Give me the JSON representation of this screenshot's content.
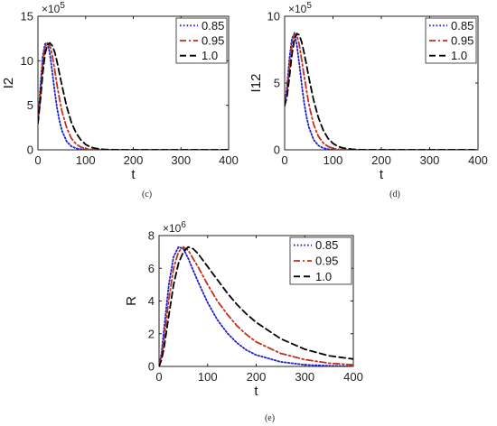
{
  "chart_data": [
    {
      "type": "line",
      "panel": "c",
      "caption": "(c)",
      "xlabel": "t",
      "ylabel": "I2",
      "xlim": [
        0,
        400
      ],
      "ylim": [
        0,
        15
      ],
      "xticks": [
        "0",
        "100",
        "200",
        "300",
        "400"
      ],
      "yticks": [
        "0",
        "5",
        "10",
        "15"
      ],
      "yscale_label": "×10^5",
      "yscale_base": "×10",
      "yscale_power": "5",
      "legend_position": "top-right",
      "x": [
        0,
        5,
        10,
        15,
        20,
        25,
        30,
        35,
        40,
        45,
        50,
        60,
        70,
        80,
        90,
        100,
        110,
        120,
        140,
        160,
        180,
        200,
        250,
        300,
        350,
        400
      ],
      "series": [
        {
          "name": "0.85",
          "color": "#1f1fcc",
          "dash": "dotted",
          "values": [
            3.0,
            7.0,
            10.5,
            11.9,
            12.0,
            10.8,
            8.8,
            6.6,
            4.7,
            3.3,
            2.2,
            0.95,
            0.4,
            0.16,
            0.06,
            0.03,
            0.01,
            0,
            0,
            0,
            0,
            0,
            0,
            0,
            0,
            0
          ]
        },
        {
          "name": "0.95",
          "color": "#c0301a",
          "dash": "dashdot",
          "values": [
            3.0,
            6.2,
            9.6,
            11.5,
            12.0,
            11.7,
            10.6,
            9.0,
            7.3,
            5.8,
            4.4,
            2.5,
            1.3,
            0.65,
            0.3,
            0.14,
            0.06,
            0.03,
            0.01,
            0,
            0,
            0,
            0,
            0,
            0,
            0
          ]
        },
        {
          "name": "1.0",
          "color": "#000000",
          "dash": "dashed",
          "values": [
            3.0,
            5.5,
            8.6,
            10.8,
            11.8,
            12.0,
            11.7,
            11.0,
            9.9,
            8.6,
            7.3,
            4.9,
            3.1,
            1.9,
            1.1,
            0.6,
            0.32,
            0.16,
            0.04,
            0.01,
            0,
            0,
            0,
            0,
            0,
            0
          ]
        }
      ]
    },
    {
      "type": "line",
      "panel": "d",
      "caption": "(d)",
      "xlabel": "t",
      "ylabel": "I12",
      "xlim": [
        0,
        400
      ],
      "ylim": [
        0,
        10
      ],
      "xticks": [
        "0",
        "100",
        "200",
        "300",
        "400"
      ],
      "yticks": [
        "0",
        "5",
        "10"
      ],
      "yscale_label": "×10^5",
      "yscale_base": "×10",
      "yscale_power": "5",
      "legend_position": "top-right",
      "x": [
        0,
        5,
        10,
        15,
        20,
        25,
        30,
        35,
        40,
        45,
        50,
        60,
        70,
        80,
        90,
        100,
        110,
        120,
        140,
        160,
        180,
        200,
        250,
        300,
        350,
        400
      ],
      "series": [
        {
          "name": "0.85",
          "color": "#1f1fcc",
          "dash": "dotted",
          "values": [
            3.3,
            4.8,
            6.9,
            8.3,
            8.7,
            7.9,
            6.5,
            5.0,
            3.6,
            2.5,
            1.7,
            0.75,
            0.32,
            0.13,
            0.05,
            0.02,
            0.01,
            0,
            0,
            0,
            0,
            0,
            0,
            0,
            0,
            0
          ]
        },
        {
          "name": "0.95",
          "color": "#c0301a",
          "dash": "dashdot",
          "values": [
            3.3,
            4.4,
            6.2,
            7.8,
            8.6,
            8.6,
            7.9,
            6.8,
            5.6,
            4.5,
            3.4,
            1.9,
            1.0,
            0.5,
            0.24,
            0.11,
            0.05,
            0.02,
            0,
            0,
            0,
            0,
            0,
            0,
            0,
            0
          ]
        },
        {
          "name": "1.0",
          "color": "#000000",
          "dash": "dashed",
          "values": [
            3.3,
            4.0,
            5.5,
            7.1,
            8.2,
            8.7,
            8.6,
            8.1,
            7.3,
            6.4,
            5.4,
            3.7,
            2.4,
            1.45,
            0.85,
            0.48,
            0.26,
            0.14,
            0.04,
            0.01,
            0,
            0,
            0,
            0,
            0,
            0
          ]
        }
      ]
    },
    {
      "type": "line",
      "panel": "e",
      "caption": "(e)",
      "xlabel": "t",
      "ylabel": "R",
      "xlim": [
        0,
        400
      ],
      "ylim": [
        0,
        8
      ],
      "xticks": [
        "0",
        "100",
        "200",
        "300",
        "400"
      ],
      "yticks": [
        "0",
        "2",
        "4",
        "6",
        "8"
      ],
      "yscale_label": "×10^6",
      "yscale_base": "×10",
      "yscale_power": "6",
      "legend_position": "top-right",
      "x": [
        0,
        5,
        10,
        20,
        30,
        40,
        50,
        60,
        70,
        80,
        100,
        120,
        140,
        160,
        180,
        200,
        250,
        300,
        350,
        400
      ],
      "series": [
        {
          "name": "0.85",
          "color": "#1f1fcc",
          "dash": "dotted",
          "values": [
            0,
            0.8,
            2.2,
            5.0,
            6.7,
            7.3,
            7.2,
            6.6,
            5.9,
            5.2,
            3.9,
            2.85,
            2.05,
            1.45,
            1.0,
            0.7,
            0.28,
            0.1,
            0.04,
            0.01
          ]
        },
        {
          "name": "0.95",
          "color": "#c0301a",
          "dash": "dashdot",
          "values": [
            0,
            0.6,
            1.6,
            4.1,
            6.0,
            7.0,
            7.3,
            7.1,
            6.6,
            6.1,
            5.0,
            4.0,
            3.2,
            2.5,
            1.95,
            1.5,
            0.8,
            0.42,
            0.2,
            0.1
          ]
        },
        {
          "name": "1.0",
          "color": "#000000",
          "dash": "dashed",
          "values": [
            0,
            0.4,
            1.1,
            3.1,
            5.0,
            6.3,
            7.0,
            7.3,
            7.2,
            6.9,
            6.1,
            5.3,
            4.5,
            3.8,
            3.2,
            2.7,
            1.7,
            1.05,
            0.65,
            0.45
          ]
        }
      ]
    }
  ]
}
